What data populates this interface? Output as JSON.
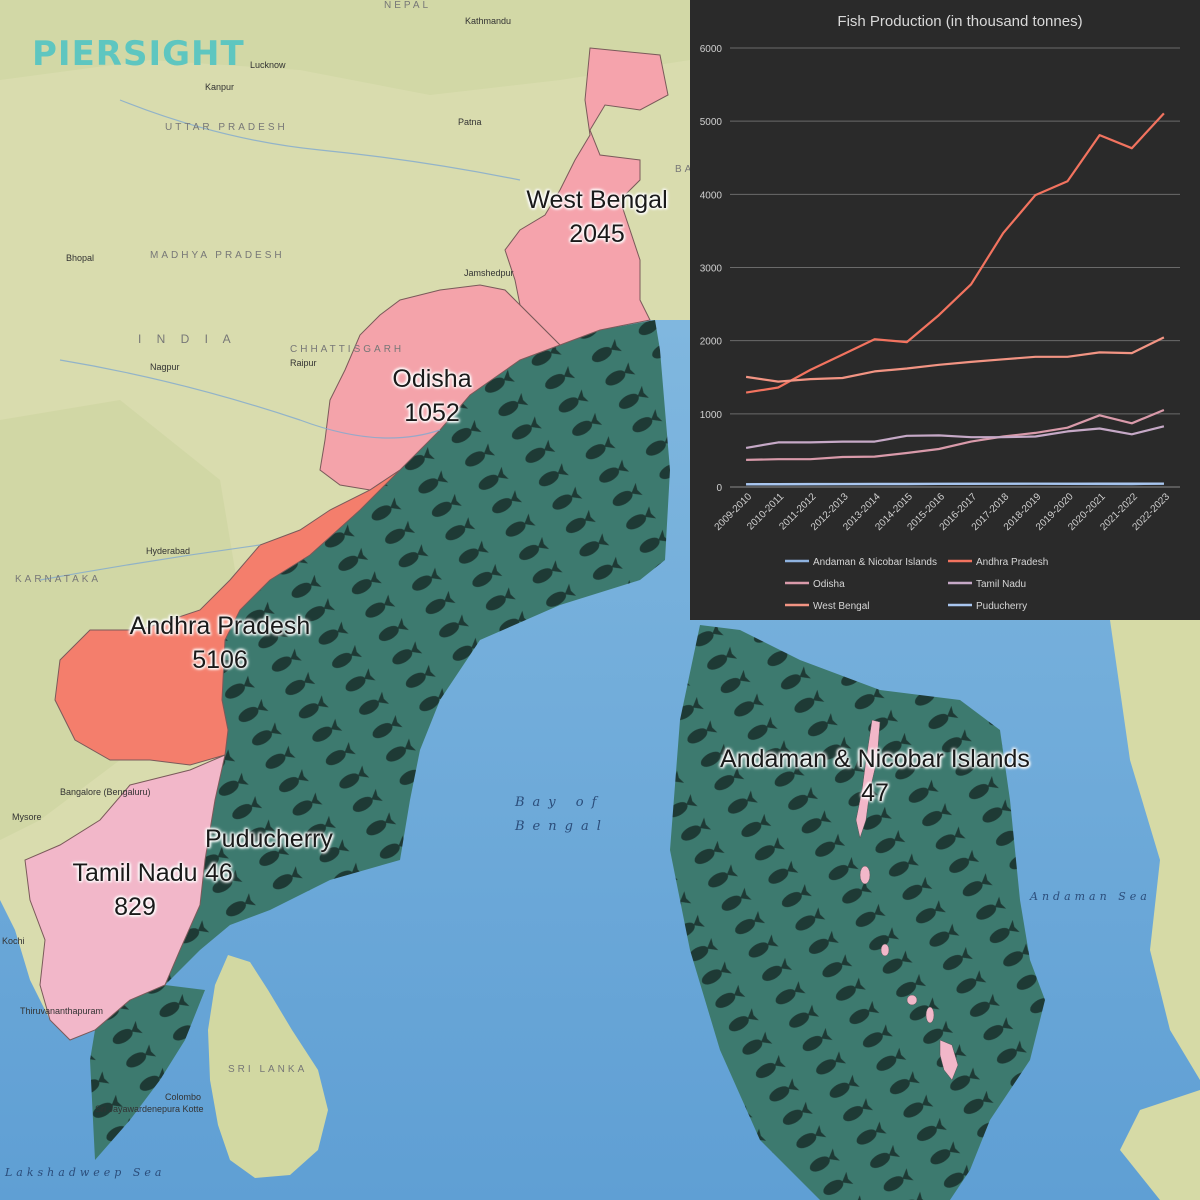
{
  "logo": {
    "text": "PIERSIGHT"
  },
  "colors": {
    "land": "#d9dcae",
    "sea": "#7eb4dc",
    "deep_sea": "#5e9ed3",
    "eez_fill": "#3d7a6f",
    "fish_icon": "#1e3a35",
    "andhra_pradesh": "#f47e6c",
    "odisha": "#f4a3aa",
    "west_bengal": "#f5a3ac",
    "tamil_nadu": "#f2b7c9",
    "chart_bg": "#2a2a2a"
  },
  "map": {
    "labels": {
      "nepal": "NEPAL",
      "india": "I N D I A",
      "bay_of_bengal_1": "Bay of",
      "bay_of_bengal_2": "Bengal",
      "sri_lanka": "SRI LANKA",
      "andaman_sea": "Andaman Sea",
      "shadweep": "Lakshadweep Sea",
      "bangladesh": "BANG",
      "kathmandu": "Kathmandu",
      "lucknow": "Lucknow",
      "kanpur": "Kanpur",
      "uttar_pradesh": "UTTAR PRADESH",
      "madhya_pradesh": "MADHYA PRADESH",
      "chhattisgarh": "CHHATTISGARH",
      "karnataka": "KARNATAKA",
      "patna": "Patna",
      "nagpur": "Nagpur",
      "hyderabad": "Hyderabad",
      "bangalore": "Bangalore (Bengaluru)",
      "colombo": "Colombo",
      "kotte": "Sri Jayawardenepura Kotte",
      "bhopal": "Bhopal",
      "jamshedpur": "Jamshedpur",
      "raipur": "Raipur",
      "mysore": "Mysore",
      "kochi": "Kochi",
      "thiruvananthapuram": "Thiruvananthapuram"
    },
    "states": [
      {
        "name": "West Bengal",
        "value": "2045"
      },
      {
        "name": "Odisha",
        "value": "1052"
      },
      {
        "name": "Andhra Pradesh",
        "value": "5106"
      },
      {
        "name": "Puducherry",
        "value": "46"
      },
      {
        "name": "Tamil Nadu",
        "value": "829"
      },
      {
        "name": "Andaman & Nicobar Islands",
        "value": "47"
      }
    ]
  },
  "chart_data": {
    "type": "line",
    "title": "Fish Production (in thousand tonnes)",
    "xlabel": "",
    "ylabel": "",
    "ylim": [
      0,
      6000
    ],
    "yticks": [
      "0",
      "1000",
      "2000",
      "3000",
      "4000",
      "5000",
      "6000"
    ],
    "grid": true,
    "legend_position": "bottom",
    "categories": [
      "2009-2010",
      "2010-2011",
      "2011-2012",
      "2012-2013",
      "2013-2014",
      "2014-2015",
      "2015-2016",
      "2016-2017",
      "2017-2018",
      "2018-2019",
      "2019-2020",
      "2020-2021",
      "2021-2022",
      "2022-2023"
    ],
    "series": [
      {
        "name": "Andaman & Nicobar Islands",
        "color": "#8fb3e0",
        "values": [
          35,
          36,
          37,
          38,
          38,
          40,
          42,
          43,
          44,
          45,
          42,
          41,
          40,
          47
        ]
      },
      {
        "name": "Andhra Pradesh",
        "color": "#f2735f",
        "values": [
          1290,
          1360,
          1600,
          1810,
          2020,
          1980,
          2350,
          2770,
          3470,
          3990,
          4180,
          4810,
          4630,
          5106
        ]
      },
      {
        "name": "Odisha",
        "color": "#d99aaa",
        "values": [
          370,
          380,
          380,
          410,
          415,
          465,
          520,
          620,
          690,
          740,
          810,
          980,
          870,
          1052
        ]
      },
      {
        "name": "Tamil Nadu",
        "color": "#c6a9c7",
        "values": [
          535,
          610,
          610,
          620,
          620,
          700,
          705,
          680,
          680,
          690,
          760,
          800,
          720,
          829
        ]
      },
      {
        "name": "West Bengal",
        "color": "#f29483",
        "values": [
          1505,
          1440,
          1475,
          1490,
          1580,
          1620,
          1670,
          1710,
          1745,
          1780,
          1780,
          1840,
          1830,
          2045
        ]
      },
      {
        "name": "Puducherry",
        "color": "#a9c6ef",
        "values": [
          38,
          40,
          41,
          41,
          42,
          43,
          44,
          45,
          45,
          45,
          45,
          46,
          46,
          46
        ]
      }
    ]
  }
}
